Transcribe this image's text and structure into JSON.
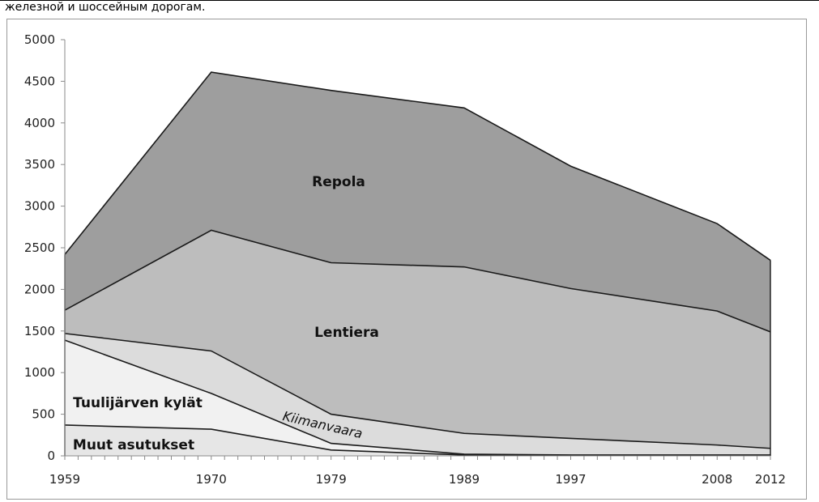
{
  "caption": "железной и шоссейным дорогам.",
  "chart_data": {
    "type": "area",
    "stacked": true,
    "x": [
      1959,
      1970,
      1979,
      1989,
      1997,
      2008,
      2012
    ],
    "series": [
      {
        "name": "Muut asutukset",
        "values": [
          370,
          320,
          70,
          10,
          5,
          5,
          5
        ],
        "color": "#e6e6e6"
      },
      {
        "name": "Tuulijärven kylät",
        "values": [
          1020,
          430,
          80,
          10,
          5,
          5,
          5
        ],
        "color": "#f1f1f1"
      },
      {
        "name": "Kiimanvaara",
        "values": [
          80,
          510,
          350,
          250,
          200,
          120,
          80
        ],
        "color": "#dcdcdc"
      },
      {
        "name": "Lentiera",
        "values": [
          280,
          1450,
          1820,
          2000,
          1800,
          1610,
          1400
        ],
        "color": "#bdbdbd"
      },
      {
        "name": "Repola",
        "values": [
          670,
          1900,
          2070,
          1910,
          1470,
          1050,
          860
        ],
        "color": "#9e9e9e"
      }
    ],
    "xticks": [
      "1959",
      "1970",
      "1979",
      "1989",
      "1997",
      "2008",
      "2012"
    ],
    "yticks": [
      "0",
      "500",
      "1000",
      "1500",
      "2000",
      "2500",
      "3000",
      "3500",
      "4000",
      "4500",
      "5000"
    ],
    "ylim": [
      0,
      5000
    ],
    "grid": false,
    "legend": "none (labels inside areas)"
  }
}
